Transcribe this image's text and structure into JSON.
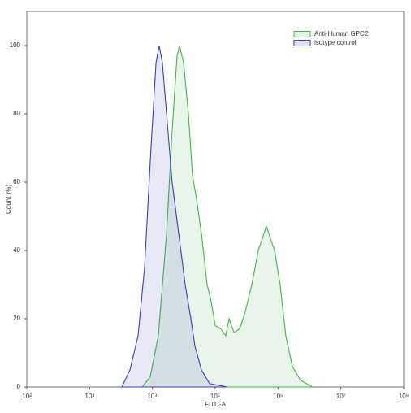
{
  "chart_data": {
    "type": "area",
    "x_label": "FITC-A",
    "y_label": "Count  (%)",
    "xscale": "log",
    "xlim": [
      100,
      100000000
    ],
    "xticks": [
      {
        "value": 100,
        "label": "10²"
      },
      {
        "value": 1000,
        "label": "10³"
      },
      {
        "value": 10000,
        "label": "10⁴"
      },
      {
        "value": 100000,
        "label": "10⁵"
      },
      {
        "value": 1000000,
        "label": "10⁶"
      },
      {
        "value": 10000000,
        "label": "10⁷"
      },
      {
        "value": 100000000,
        "label": "10⁸"
      }
    ],
    "ylim": [
      0,
      110
    ],
    "yticks": [
      0,
      20,
      40,
      60,
      80,
      100
    ],
    "legend": "upper right",
    "series": [
      {
        "name": "Anti-Human GPC2",
        "color": "#4caf50",
        "x": [
          6860,
          9250,
          12400,
          16800,
          20600,
          24700,
          27000,
          31300,
          37400,
          43500,
          50400,
          60300,
          74300,
          86100,
          100000,
          123000,
          147000,
          166000,
          199000,
          244000,
          301000,
          382000,
          485000,
          653000,
          879000,
          1080000,
          1330000,
          1690000,
          2280000,
          3560000
        ],
        "values": [
          0,
          3,
          15,
          45,
          75,
          97,
          100,
          95,
          80,
          62,
          55,
          45,
          30,
          25,
          18,
          17,
          15,
          20,
          16,
          17,
          22,
          30,
          40,
          47,
          40,
          30,
          15,
          6,
          2,
          0
        ]
      },
      {
        "name": "isotype control",
        "color": "#3f3fb5",
        "x": [
          3260,
          4390,
          5910,
          7500,
          9500,
          11400,
          12800,
          14400,
          16800,
          20600,
          26200,
          33200,
          40900,
          47500,
          60300,
          81200,
          156000
        ],
        "values": [
          0,
          5,
          15,
          35,
          70,
          95,
          100,
          95,
          80,
          60,
          45,
          30,
          20,
          12,
          5,
          1,
          0
        ]
      }
    ]
  }
}
